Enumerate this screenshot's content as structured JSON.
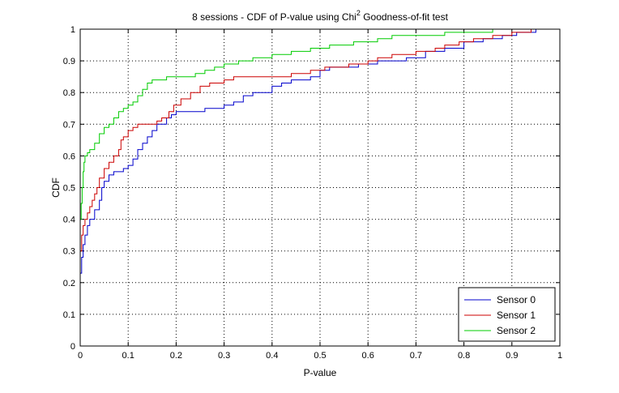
{
  "chart_data": {
    "type": "line",
    "line_shape": "step",
    "title": {
      "prefix": "8 sessions - CDF of P-value using Chi",
      "superscript": "2",
      "suffix": " Goodness-of-fit test"
    },
    "xlabel": "P-value",
    "ylabel": "CDF",
    "xlim": [
      0,
      1
    ],
    "ylim": [
      0,
      1
    ],
    "xticks": [
      0,
      0.1,
      0.2,
      0.3,
      0.4,
      0.5,
      0.6,
      0.7,
      0.8,
      0.9,
      1
    ],
    "xtick_labels": [
      "0",
      "0.1",
      "0.2",
      "0.3",
      "0.4",
      "0.5",
      "0.6",
      "0.7",
      "0.8",
      "0.9",
      "1"
    ],
    "yticks": [
      0,
      0.1,
      0.2,
      0.3,
      0.4,
      0.5,
      0.6,
      0.7,
      0.8,
      0.9,
      1
    ],
    "ytick_labels": [
      "0",
      "0.1",
      "0.2",
      "0.3",
      "0.4",
      "0.5",
      "0.6",
      "0.7",
      "0.8",
      "0.9",
      "1"
    ],
    "grid": true,
    "grid_style": "dotted",
    "legend_position": "bottom-right",
    "series": [
      {
        "name": "Sensor 0",
        "color": "#0000cc",
        "points": [
          [
            0,
            0.23
          ],
          [
            0.003,
            0.28
          ],
          [
            0.006,
            0.32
          ],
          [
            0.01,
            0.35
          ],
          [
            0.015,
            0.38
          ],
          [
            0.02,
            0.4
          ],
          [
            0.03,
            0.43
          ],
          [
            0.04,
            0.46
          ],
          [
            0.045,
            0.5
          ],
          [
            0.05,
            0.52
          ],
          [
            0.06,
            0.54
          ],
          [
            0.07,
            0.55
          ],
          [
            0.09,
            0.56
          ],
          [
            0.1,
            0.57
          ],
          [
            0.11,
            0.59
          ],
          [
            0.12,
            0.62
          ],
          [
            0.13,
            0.64
          ],
          [
            0.14,
            0.66
          ],
          [
            0.15,
            0.68
          ],
          [
            0.16,
            0.7
          ],
          [
            0.18,
            0.72
          ],
          [
            0.19,
            0.73
          ],
          [
            0.2,
            0.74
          ],
          [
            0.26,
            0.75
          ],
          [
            0.3,
            0.76
          ],
          [
            0.32,
            0.77
          ],
          [
            0.34,
            0.79
          ],
          [
            0.36,
            0.8
          ],
          [
            0.4,
            0.82
          ],
          [
            0.42,
            0.83
          ],
          [
            0.44,
            0.84
          ],
          [
            0.48,
            0.85
          ],
          [
            0.5,
            0.87
          ],
          [
            0.52,
            0.88
          ],
          [
            0.58,
            0.89
          ],
          [
            0.62,
            0.9
          ],
          [
            0.68,
            0.91
          ],
          [
            0.72,
            0.93
          ],
          [
            0.76,
            0.94
          ],
          [
            0.8,
            0.96
          ],
          [
            0.84,
            0.97
          ],
          [
            0.88,
            0.98
          ],
          [
            0.91,
            0.99
          ],
          [
            0.95,
            1.0
          ]
        ]
      },
      {
        "name": "Sensor 1",
        "color": "#cc0000",
        "points": [
          [
            0,
            0.3
          ],
          [
            0.003,
            0.35
          ],
          [
            0.006,
            0.38
          ],
          [
            0.01,
            0.4
          ],
          [
            0.015,
            0.42
          ],
          [
            0.02,
            0.44
          ],
          [
            0.025,
            0.46
          ],
          [
            0.03,
            0.48
          ],
          [
            0.035,
            0.5
          ],
          [
            0.04,
            0.53
          ],
          [
            0.05,
            0.56
          ],
          [
            0.06,
            0.58
          ],
          [
            0.07,
            0.6
          ],
          [
            0.08,
            0.62
          ],
          [
            0.085,
            0.65
          ],
          [
            0.09,
            0.66
          ],
          [
            0.1,
            0.68
          ],
          [
            0.11,
            0.69
          ],
          [
            0.12,
            0.7
          ],
          [
            0.16,
            0.71
          ],
          [
            0.17,
            0.72
          ],
          [
            0.185,
            0.74
          ],
          [
            0.195,
            0.76
          ],
          [
            0.21,
            0.78
          ],
          [
            0.23,
            0.8
          ],
          [
            0.25,
            0.82
          ],
          [
            0.27,
            0.83
          ],
          [
            0.3,
            0.84
          ],
          [
            0.32,
            0.85
          ],
          [
            0.44,
            0.86
          ],
          [
            0.48,
            0.87
          ],
          [
            0.51,
            0.88
          ],
          [
            0.56,
            0.89
          ],
          [
            0.6,
            0.9
          ],
          [
            0.62,
            0.91
          ],
          [
            0.65,
            0.92
          ],
          [
            0.7,
            0.93
          ],
          [
            0.74,
            0.94
          ],
          [
            0.76,
            0.95
          ],
          [
            0.79,
            0.96
          ],
          [
            0.82,
            0.97
          ],
          [
            0.86,
            0.98
          ],
          [
            0.9,
            0.99
          ],
          [
            0.94,
            1.0
          ]
        ]
      },
      {
        "name": "Sensor 2",
        "color": "#00cc00",
        "points": [
          [
            0,
            0.4
          ],
          [
            0.002,
            0.45
          ],
          [
            0.004,
            0.5
          ],
          [
            0.006,
            0.55
          ],
          [
            0.008,
            0.58
          ],
          [
            0.01,
            0.6
          ],
          [
            0.015,
            0.61
          ],
          [
            0.02,
            0.62
          ],
          [
            0.03,
            0.64
          ],
          [
            0.04,
            0.67
          ],
          [
            0.05,
            0.69
          ],
          [
            0.06,
            0.7
          ],
          [
            0.07,
            0.72
          ],
          [
            0.08,
            0.74
          ],
          [
            0.09,
            0.75
          ],
          [
            0.1,
            0.76
          ],
          [
            0.11,
            0.77
          ],
          [
            0.12,
            0.79
          ],
          [
            0.13,
            0.81
          ],
          [
            0.14,
            0.83
          ],
          [
            0.15,
            0.84
          ],
          [
            0.18,
            0.85
          ],
          [
            0.24,
            0.86
          ],
          [
            0.26,
            0.87
          ],
          [
            0.28,
            0.88
          ],
          [
            0.3,
            0.89
          ],
          [
            0.33,
            0.9
          ],
          [
            0.36,
            0.91
          ],
          [
            0.4,
            0.92
          ],
          [
            0.44,
            0.93
          ],
          [
            0.48,
            0.94
          ],
          [
            0.52,
            0.95
          ],
          [
            0.57,
            0.96
          ],
          [
            0.62,
            0.97
          ],
          [
            0.65,
            0.98
          ],
          [
            0.76,
            0.99
          ],
          [
            0.86,
            1.0
          ]
        ]
      }
    ]
  }
}
